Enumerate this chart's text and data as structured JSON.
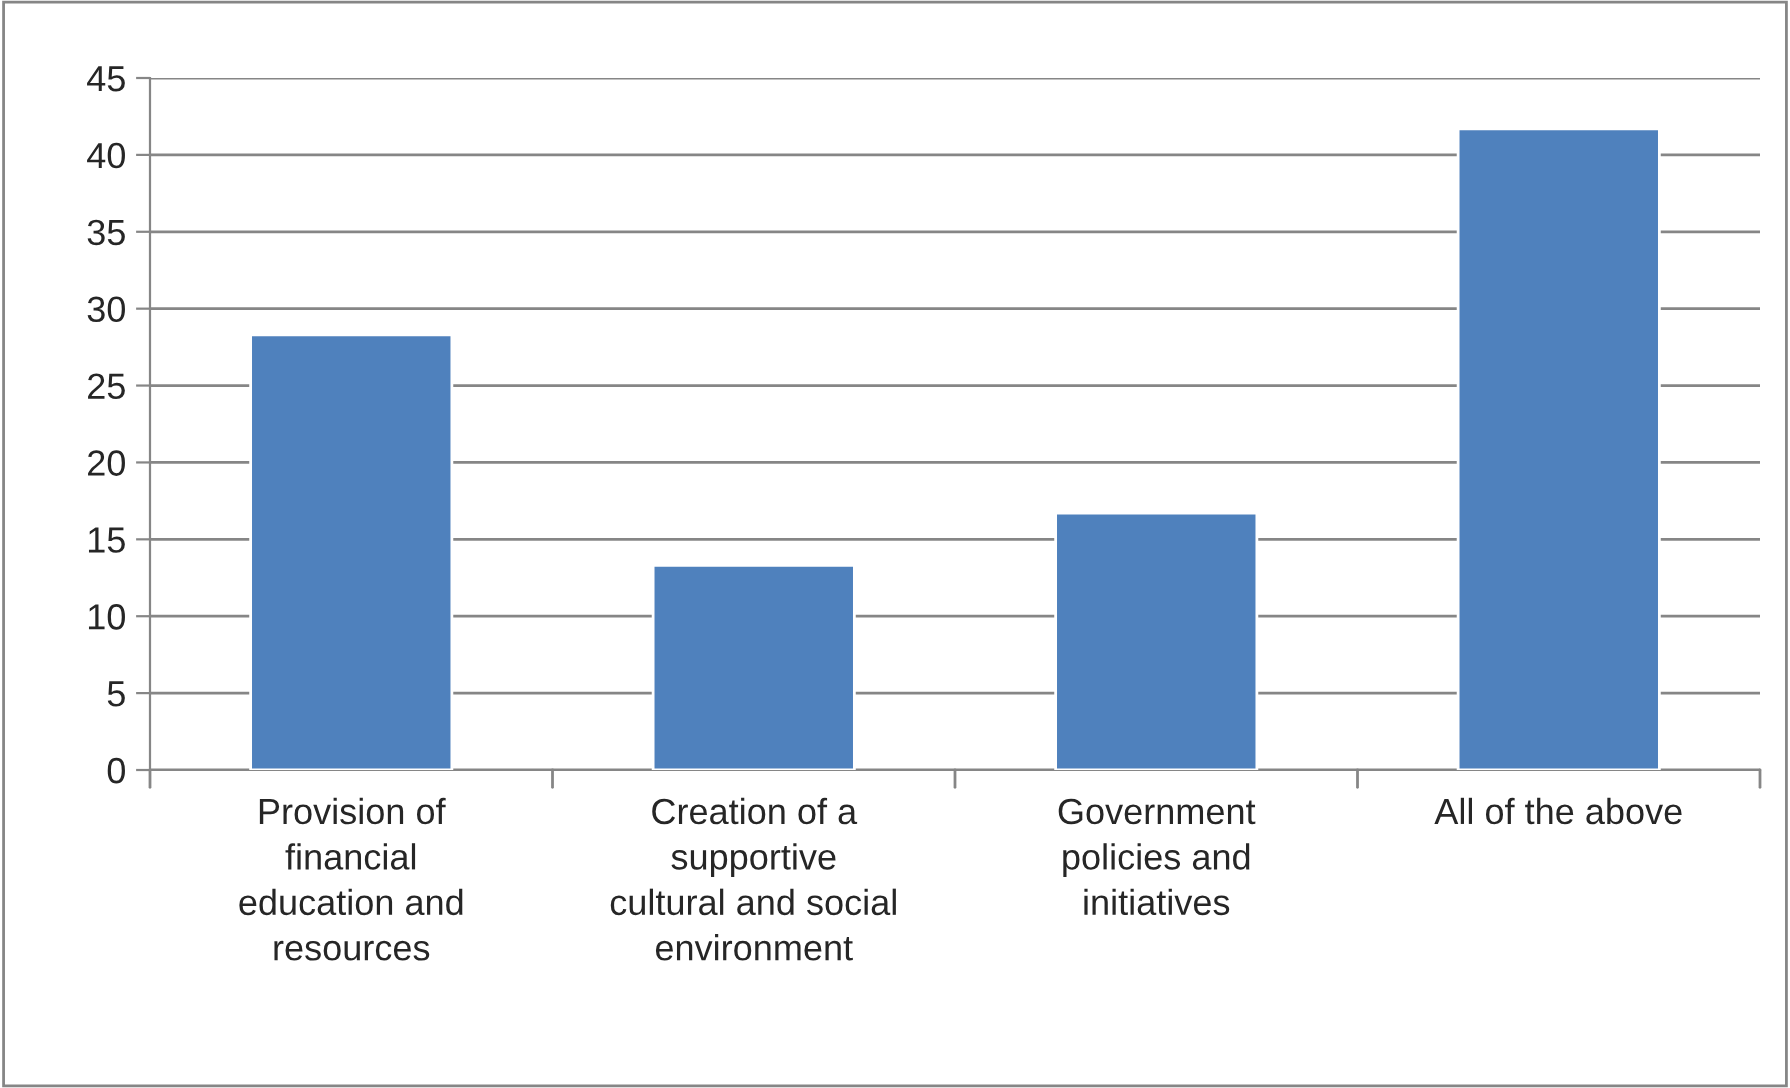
{
  "chart_data": {
    "type": "bar",
    "categories": [
      "Provision of\nfinancial\neducation and\nresources",
      "Creation of a\nsupportive\ncultural and social\nenvironment",
      "Government\npolicies and\ninitiatives",
      "All of the above"
    ],
    "values": [
      28.3,
      13.3,
      16.7,
      41.7
    ],
    "color": "#4f81bd",
    "ylim": [
      0,
      45
    ],
    "yticks": [
      0,
      5,
      10,
      15,
      20,
      25,
      30,
      35,
      40,
      45
    ],
    "grid": "y",
    "legend": false
  }
}
